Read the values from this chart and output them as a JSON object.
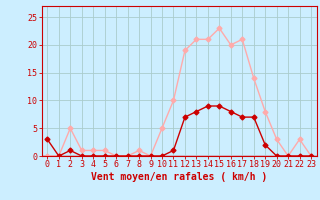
{
  "x": [
    0,
    1,
    2,
    3,
    4,
    5,
    6,
    7,
    8,
    9,
    10,
    11,
    12,
    13,
    14,
    15,
    16,
    17,
    18,
    19,
    20,
    21,
    22,
    23
  ],
  "wind_avg": [
    3,
    0,
    1,
    0,
    0,
    0,
    0,
    0,
    0,
    0,
    0,
    1,
    7,
    8,
    9,
    9,
    8,
    7,
    7,
    2,
    0,
    0,
    0,
    0
  ],
  "wind_gust": [
    0,
    0,
    5,
    1,
    1,
    1,
    0,
    0,
    1,
    0,
    5,
    10,
    19,
    21,
    21,
    23,
    20,
    21,
    14,
    8,
    3,
    0,
    3,
    0
  ],
  "color_avg": "#cc0000",
  "color_gust": "#ffaaaa",
  "bg_color": "#cceeff",
  "grid_color": "#aacccc",
  "xlabel": "Vent moyen/en rafales ( km/h )",
  "ylabel_ticks": [
    0,
    5,
    10,
    15,
    20,
    25
  ],
  "ylim": [
    0,
    27
  ],
  "xlim": [
    -0.5,
    23.5
  ],
  "xlabel_fontsize": 7,
  "tick_fontsize": 6,
  "marker_size": 2.5,
  "line_width": 1.0
}
